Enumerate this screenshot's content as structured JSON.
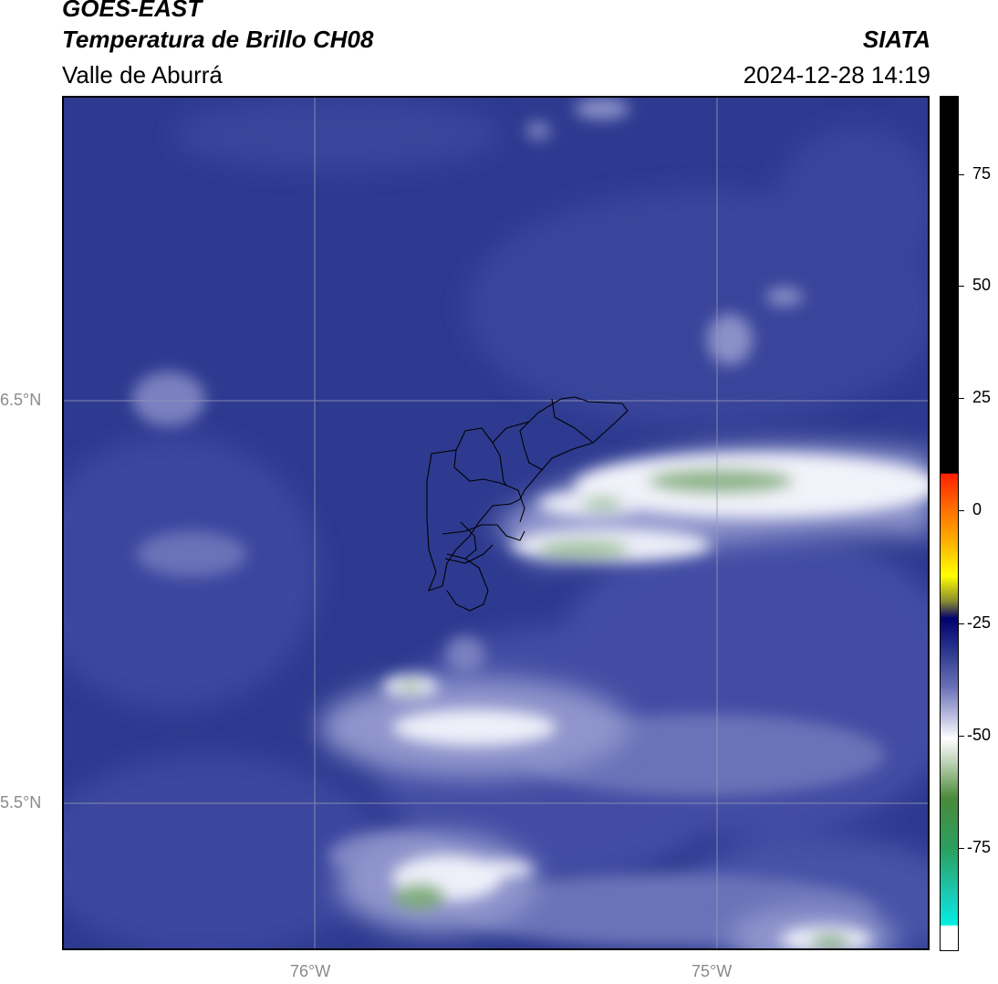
{
  "header": {
    "title_line1": "GOES-EAST",
    "title_line2": "Temperatura de Brillo CH08",
    "subtitle": "Valle de Aburrá",
    "organization": "SIATA",
    "datetime": "2024-12-28 14:19"
  },
  "map": {
    "lat_labels": [
      "6.5°N",
      "5.5°N"
    ],
    "lon_labels": [
      "76°W",
      "75°W"
    ],
    "colors": {
      "background_deep_blue": "#2d3a8f",
      "mid_blue": "#4a55a8",
      "light_lavender": "#8f95cc",
      "white_cloud": "#f4f5fb",
      "green_core": "#7fae7a",
      "gridline": "#9a9ab8",
      "boundary": "#000000"
    }
  },
  "colorbar": {
    "tick_labels": [
      "75",
      "50",
      "25",
      "0",
      "-25",
      "-50",
      "-75"
    ],
    "colors": [
      "#000000",
      "#ff2a00",
      "#ff8a00",
      "#ffff00",
      "#000080",
      "#ffffff",
      "#3a8a3a",
      "#00e5d5"
    ]
  }
}
